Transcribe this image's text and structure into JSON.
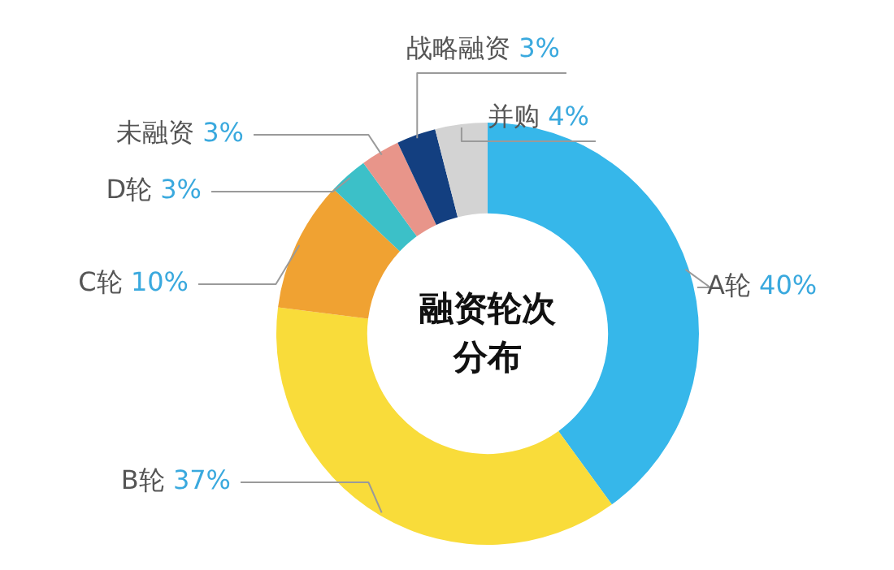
{
  "chart_data": {
    "type": "donut",
    "title": "融资轮次分布",
    "categories": [
      "A轮",
      "B轮",
      "C轮",
      "D轮",
      "未融资",
      "战略融资",
      "并购"
    ],
    "values": [
      40,
      37,
      10,
      3,
      3,
      3,
      4
    ],
    "value_labels": [
      "40%",
      "37%",
      "10%",
      "3%",
      "3%",
      "3%",
      "4%"
    ],
    "colors": [
      "#36b7ea",
      "#f9dc3a",
      "#f0a232",
      "#3cc0c8",
      "#e8958a",
      "#133f80",
      "#d3d3d3"
    ],
    "legend": false
  }
}
